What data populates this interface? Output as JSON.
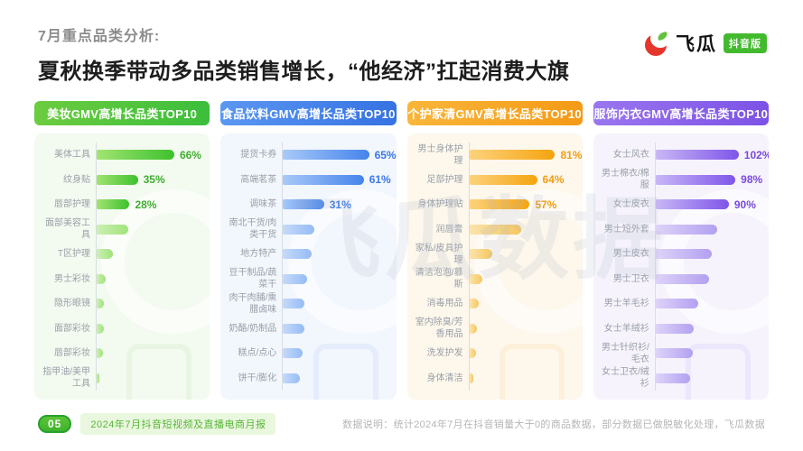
{
  "header": {
    "eyebrow": "7月重点品类分析:",
    "title": "夏秋换季带动多品类销售增长，“他经济”扛起消费大旗"
  },
  "brand": {
    "name": "飞瓜",
    "badge": "抖音版"
  },
  "watermark": "飞瓜数据",
  "footer": {
    "page_number": "05",
    "report_name": "2024年7月抖音短视频及直播电商月报",
    "note": "数据说明：统计2024年7月在抖音销量大于0的商品数据，部分数据已做脱敏化处理，飞瓜数据"
  },
  "chart_data": [
    {
      "type": "bar",
      "title": "美妆GMV高增长品类TOP10",
      "orientation": "horizontal",
      "unit": "%",
      "scale_max": 90,
      "colors": {
        "header_from": "#6ccc3f",
        "header_to": "#3cbe3c",
        "bg": "#f3faf0",
        "bar_from": "#a2e472",
        "bar_to": "#3dc12d",
        "muted_from": "#cdf0b4",
        "muted_to": "#a0e37a",
        "value": "#3fae31",
        "deco": "rgba(110,190,80,0.08)"
      },
      "items": [
        {
          "label": "美体工具",
          "value": 66,
          "display": "66%"
        },
        {
          "label": "纹身贴",
          "value": 35,
          "display": "35%"
        },
        {
          "label": "唇部护理",
          "value": 28,
          "display": "28%"
        },
        {
          "label": "面部美容工具",
          "value": 27
        },
        {
          "label": "T区护理",
          "value": 14
        },
        {
          "label": "男士彩妆",
          "value": 8
        },
        {
          "label": "隐形眼镜",
          "value": 6.5
        },
        {
          "label": "面部彩妆",
          "value": 6
        },
        {
          "label": "唇部彩妆",
          "value": 5.5
        },
        {
          "label": "指甲油/美甲工具",
          "value": 2
        }
      ]
    },
    {
      "type": "bar",
      "title": "食品饮料GMV高增长品类TOP10",
      "orientation": "horizontal",
      "unit": "%",
      "scale_max": 80,
      "colors": {
        "header_from": "#5b97f2",
        "header_to": "#3672e2",
        "bg": "#f2f6fd",
        "bar_from": "#a9c9f8",
        "bar_to": "#4584ec",
        "muted_from": "#c6daf9",
        "muted_to": "#95bcf4",
        "value": "#3b77e8",
        "deco": "rgba(80,130,230,0.08)"
      },
      "items": [
        {
          "label": "提货卡券",
          "value": 65,
          "display": "65%"
        },
        {
          "label": "高端茗茶",
          "value": 61,
          "display": "61%"
        },
        {
          "label": "调味茶",
          "value": 31,
          "display": "31%"
        },
        {
          "label": "南北干货/肉类干货",
          "value": 24
        },
        {
          "label": "地方特产",
          "value": 22
        },
        {
          "label": "豆干制品/蔬菜干",
          "value": 18
        },
        {
          "label": "肉干肉脯/熏腊卤味",
          "value": 16
        },
        {
          "label": "奶酪/奶制品",
          "value": 16
        },
        {
          "label": "糕点/点心",
          "value": 15
        },
        {
          "label": "饼干/膨化",
          "value": 13
        }
      ]
    },
    {
      "type": "bar",
      "title": "个护家清GMV高增长品类TOP10",
      "orientation": "horizontal",
      "unit": "%",
      "scale_max": 100,
      "colors": {
        "header_from": "#f9b63a",
        "header_to": "#f49a16",
        "bg": "#fdf7ec",
        "bar_from": "#fdd27d",
        "bar_to": "#f5a40e",
        "muted_from": "#fae3ac",
        "muted_to": "#f6c75f",
        "value": "#f29d13",
        "deco": "rgba(240,165,30,0.08)"
      },
      "items": [
        {
          "label": "男士身体护理",
          "value": 81,
          "display": "81%"
        },
        {
          "label": "足部护理",
          "value": 64,
          "display": "64%"
        },
        {
          "label": "身体护理贴",
          "value": 57,
          "display": "57%"
        },
        {
          "label": "润唇膏",
          "value": 49
        },
        {
          "label": "家私/皮具护理",
          "value": 22
        },
        {
          "label": "清洁泡泡/慕斯",
          "value": 12
        },
        {
          "label": "消毒用品",
          "value": 9
        },
        {
          "label": "室内除臭/芳香用品",
          "value": 7
        },
        {
          "label": "洗发护发",
          "value": 6
        },
        {
          "label": "身体清洁",
          "value": 4
        }
      ]
    },
    {
      "type": "bar",
      "title": "服饰内衣GMV高增长品类TOP10",
      "orientation": "horizontal",
      "unit": "%",
      "scale_max": 130,
      "colors": {
        "header_from": "#9a76ef",
        "header_to": "#7c52e6",
        "bg": "#f6f3fd",
        "bar_from": "#c8b7f6",
        "bar_to": "#7f55e9",
        "muted_from": "#ddd3f8",
        "muted_to": "#b3a0f1",
        "value": "#7a49dd",
        "deco": "rgba(130,90,230,0.08)"
      },
      "items": [
        {
          "label": "女士风衣",
          "value": 102,
          "display": "102%"
        },
        {
          "label": "男士棉衣/棉服",
          "value": 98,
          "display": "98%"
        },
        {
          "label": "女士皮衣",
          "value": 90,
          "display": "90%"
        },
        {
          "label": "男士短外套",
          "value": 76
        },
        {
          "label": "男士皮衣",
          "value": 69
        },
        {
          "label": "男士卫衣",
          "value": 66
        },
        {
          "label": "男士羊毛衫",
          "value": 52
        },
        {
          "label": "女士羊绒衫",
          "value": 47
        },
        {
          "label": "男士针织衫/毛衣",
          "value": 46
        },
        {
          "label": "女士卫衣/绒衫",
          "value": 42
        }
      ]
    }
  ]
}
